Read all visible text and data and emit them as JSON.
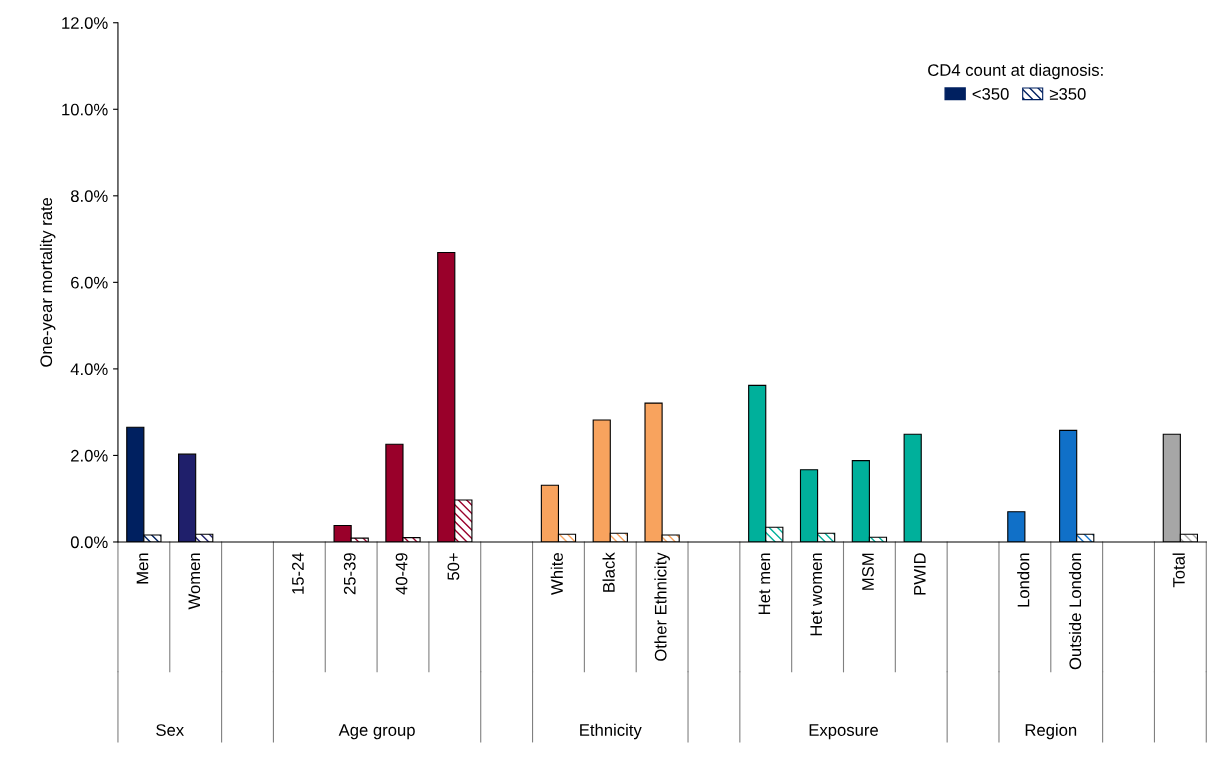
{
  "chart_data": {
    "type": "bar",
    "ylabel": "One-year mortality rate",
    "legend_title": "CD4 count at diagnosis:",
    "categories": [
      "Men",
      "Women",
      null,
      "15-24",
      "25-39",
      "40-49",
      "50+",
      null,
      "White",
      "Black",
      "Other Ethnicity",
      null,
      "Het men",
      "Het women",
      "MSM",
      "PWID",
      null,
      "London",
      "Outside London",
      null,
      "Total"
    ],
    "series": [
      {
        "name": "<350",
        "color": "#002060",
        "colors": [
          "#002060",
          "#1f1f6b",
          null,
          "#99002a",
          "#99002a",
          "#99002a",
          "#99002a",
          null,
          "#f8a35e",
          "#f8a35e",
          "#f8a35e",
          null,
          "#00b09b",
          "#00b09b",
          "#00b09b",
          "#00b09b",
          null,
          "#1070c8",
          "#1070c8",
          null,
          "#a6a6a6"
        ],
        "values": [
          2.65,
          2.03,
          null,
          null,
          0.38,
          2.26,
          6.69,
          null,
          1.31,
          2.82,
          3.21,
          null,
          3.62,
          1.67,
          1.88,
          2.49,
          null,
          0.7,
          2.58,
          null,
          2.49
        ]
      },
      {
        "name": "≥350",
        "color": "#002060",
        "colors": [
          "#002060",
          "#1f1f6b",
          null,
          "#99002a",
          "#99002a",
          "#99002a",
          "#99002a",
          null,
          "#f8a35e",
          "#f8a35e",
          "#f8a35e",
          null,
          "#00b09b",
          "#00b09b",
          "#00b09b",
          "#00b09b",
          null,
          "#1070c8",
          "#1070c8",
          null,
          "#a6a6a6"
        ],
        "values": [
          0.16,
          0.18,
          null,
          null,
          0.09,
          0.1,
          0.97,
          null,
          0.18,
          0.2,
          0.16,
          null,
          0.34,
          0.2,
          0.11,
          null,
          null,
          null,
          0.18,
          null,
          0.18
        ]
      }
    ],
    "ylim": [
      0,
      12
    ],
    "yticks": [
      {
        "value": 0,
        "label": "0.0%"
      },
      {
        "value": 2,
        "label": "2.0%"
      },
      {
        "value": 4,
        "label": "4.0%"
      },
      {
        "value": 6,
        "label": "6.0%"
      },
      {
        "value": 8,
        "label": "8.0%"
      },
      {
        "value": 10,
        "label": "10.0%"
      },
      {
        "value": 12,
        "label": "12.0%"
      }
    ],
    "grid": false,
    "legend": "top right",
    "annotations": [
      "Sex",
      "Age group",
      "Ethnicity",
      "Exposure",
      "Region"
    ]
  }
}
